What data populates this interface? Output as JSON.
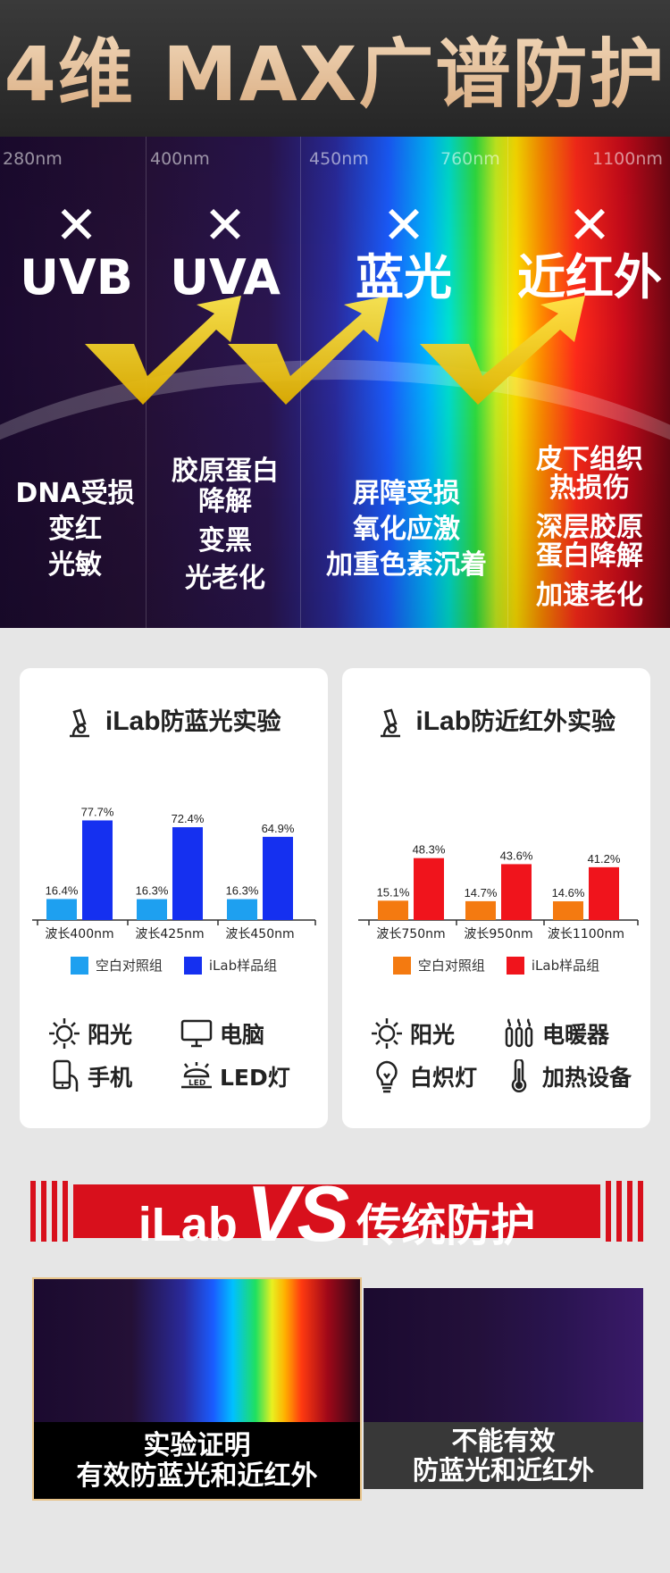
{
  "header": {
    "title": "4维 MAX广谱防护"
  },
  "spectrum": {
    "wavelengths": [
      "280nm",
      "400nm",
      "450nm",
      "760nm",
      "1100nm"
    ],
    "columns": [
      {
        "mark": "✕",
        "name": "UVB",
        "effects": [
          "DNA受损",
          "变红",
          "光敏"
        ]
      },
      {
        "mark": "✕",
        "name": "UVA",
        "effects": [
          "胶原蛋白",
          "降解",
          "变黑",
          "光老化"
        ]
      },
      {
        "mark": "✕",
        "name": "蓝光",
        "effects": [
          "屏障受损",
          "氧化应激",
          "加重色素沉着"
        ]
      },
      {
        "mark": "✕",
        "name": "近红外",
        "effects": [
          "皮下组织",
          "热损伤",
          "深层胶原",
          "蛋白降解",
          "加速老化"
        ]
      }
    ]
  },
  "panels": [
    {
      "brand": "iLab",
      "title": "防蓝光实验",
      "chart_data": {
        "type": "bar",
        "categories": [
          "波长400nm",
          "波长425nm",
          "波长450nm"
        ],
        "series": [
          {
            "name": "空白对照组",
            "values": [
              16.4,
              16.3,
              16.3
            ],
            "labels": [
              "16.4%",
              "16.3%",
              "16.3%"
            ],
            "color": "#1ea0f0"
          },
          {
            "name": "iLab样品组",
            "values": [
              77.7,
              72.4,
              64.9
            ],
            "labels": [
              "77.7%",
              "72.4%",
              "64.9%"
            ],
            "color": "#1530f0"
          }
        ],
        "ylim": [
          0,
          85
        ]
      },
      "sources": [
        {
          "icon": "sun-icon",
          "label": "阳光"
        },
        {
          "icon": "monitor-icon",
          "label": "电脑"
        },
        {
          "icon": "phone-icon",
          "label": "手机"
        },
        {
          "icon": "led-lamp-icon",
          "label": "LED灯"
        }
      ]
    },
    {
      "brand": "iLab",
      "title": "防近红外实验",
      "chart_data": {
        "type": "bar",
        "categories": [
          "波长750nm",
          "波长950nm",
          "波长1100nm"
        ],
        "series": [
          {
            "name": "空白对照组",
            "values": [
              15.1,
              14.7,
              14.6
            ],
            "labels": [
              "15.1%",
              "14.7%",
              "14.6%"
            ],
            "color": "#f47a10"
          },
          {
            "name": "iLab样品组",
            "values": [
              48.3,
              43.6,
              41.2
            ],
            "labels": [
              "48.3%",
              "43.6%",
              "41.2%"
            ],
            "color": "#f0141c"
          }
        ],
        "ylim": [
          0,
          85
        ]
      },
      "sources": [
        {
          "icon": "sun-icon",
          "label": "阳光"
        },
        {
          "icon": "heater-icon",
          "label": "电暖器"
        },
        {
          "icon": "bulb-icon",
          "label": "白炽灯"
        },
        {
          "icon": "thermometer-icon",
          "label": "加热设备"
        }
      ]
    }
  ],
  "vs": {
    "brand": "iLab",
    "vs": "VS",
    "label": "传统防护"
  },
  "compare": {
    "left": [
      "实验证明",
      "有效防蓝光和近红外"
    ],
    "right": [
      "不能有效",
      "防蓝光和近红外"
    ]
  }
}
